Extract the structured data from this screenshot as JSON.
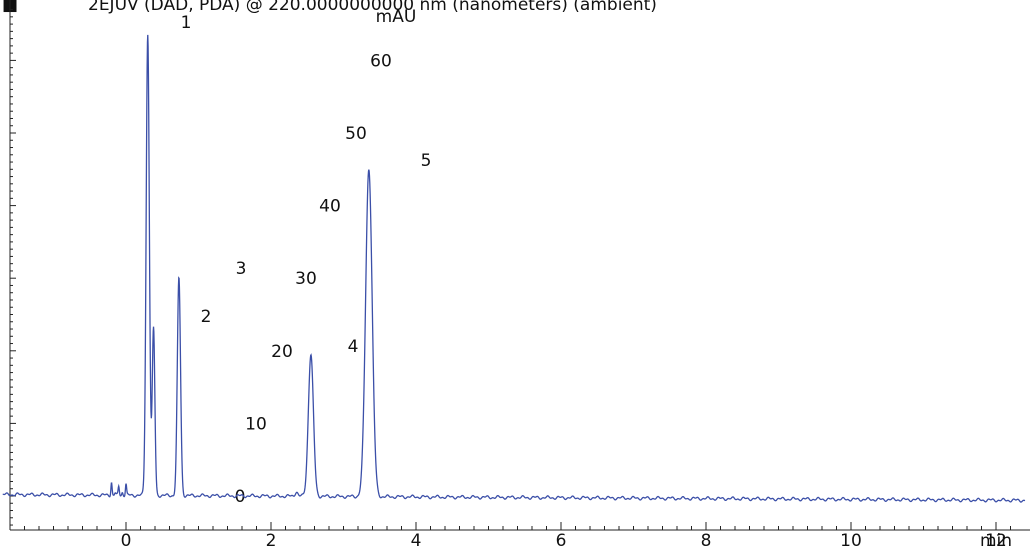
{
  "chart_data": {
    "type": "line",
    "title": "2EJUV (DAD, PDA) @ 220.0000000000 nm (nanometers) (ambient)",
    "title_prefix": "■",
    "ylabel": "mAU",
    "x_ticks": [
      {
        "value": 0,
        "label": "0"
      },
      {
        "value": 2,
        "label": "2"
      },
      {
        "value": 4,
        "label": "4"
      },
      {
        "value": 6,
        "label": "6"
      },
      {
        "value": 8,
        "label": "8"
      },
      {
        "value": 10,
        "label": "10"
      },
      {
        "value": 12,
        "label": "12"
      }
    ],
    "extra_x_label": {
      "value": 12,
      "label": "min"
    },
    "xlim": [
      -1.7,
      12.4
    ],
    "ylim": [
      -4,
      67
    ],
    "y_ticks": [
      {
        "value": 0,
        "label": "0"
      },
      {
        "value": 10,
        "label": "10"
      },
      {
        "value": 20,
        "label": "20"
      },
      {
        "value": 30,
        "label": "30"
      },
      {
        "value": 40,
        "label": "40"
      },
      {
        "value": 50,
        "label": "50"
      },
      {
        "value": 60,
        "label": "60"
      }
    ],
    "line_color": "#3b4fa8",
    "baseline": {
      "start": 0.2,
      "end": -0.6
    },
    "noise": [
      {
        "x": -0.2,
        "y": 1.8
      },
      {
        "x": -0.15,
        "y": 0.3
      },
      {
        "x": -0.1,
        "y": 1.2
      },
      {
        "x": -0.05,
        "y": 0.4
      },
      {
        "x": 0.0,
        "y": 1.6
      }
    ],
    "peaks": [
      {
        "label": "1",
        "x": 0.3,
        "height": 63.5,
        "width": 0.022
      },
      {
        "label": "",
        "x": 0.38,
        "height": 23.0,
        "width": 0.018
      },
      {
        "label": "2",
        "x": 0.73,
        "height": 30.0,
        "width": 0.022
      },
      {
        "label": "3",
        "x": 2.55,
        "height": 19.5,
        "width": 0.035
      },
      {
        "label": "4",
        "x": 3.35,
        "height": 45.2,
        "width": 0.045
      }
    ],
    "small_bumps": [
      {
        "x": 2.35,
        "height": 0.6,
        "width": 0.02
      }
    ],
    "peak_labels": [
      {
        "label": "1",
        "x": 1.1,
        "y": 65.2
      },
      {
        "label": "2",
        "x": 1.0,
        "y": 24.2
      },
      {
        "label": "3",
        "x": 1.45,
        "y": 31.0
      },
      {
        "label": "4",
        "x": 3.75,
        "y": 20.2
      },
      {
        "label": "5",
        "x": 4.15,
        "y": 46.0
      }
    ]
  }
}
